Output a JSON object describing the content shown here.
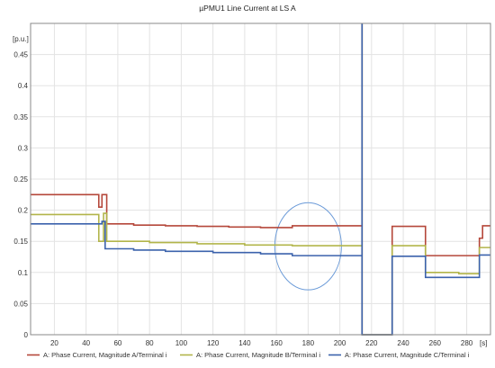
{
  "chart_data": {
    "type": "line",
    "title": "µPMU1 Line Current at LS A",
    "ylabel": "[p.u.]",
    "xlabel": "[s]",
    "xlim": [
      5,
      295
    ],
    "ylim": [
      0,
      0.5
    ],
    "x_ticks": [
      20,
      40,
      60,
      80,
      100,
      120,
      140,
      160,
      180,
      200,
      220,
      240,
      260,
      280
    ],
    "y_ticks": [
      0,
      0.05,
      0.1,
      0.15,
      0.2,
      0.25,
      0.3,
      0.35,
      0.4,
      0.45
    ],
    "y_tick_labels": [
      "0",
      "0.05",
      "0.1",
      "0.15",
      "0.2",
      "0.25",
      "0.3",
      "0.35",
      "0.4",
      "0.45"
    ],
    "grid": true,
    "legend_position": "bottom",
    "annotation": {
      "shape": "ellipse",
      "center_x": 180,
      "center_y": 0.142,
      "radius_x": 21,
      "radius_y": 0.07,
      "color": "#6a9ad8"
    },
    "series": [
      {
        "name": "A: Phase Current, Magnitude A/Terminal i",
        "color": "#b5473a",
        "points": [
          [
            5,
            0.225
          ],
          [
            48,
            0.225
          ],
          [
            48,
            0.205
          ],
          [
            50,
            0.205
          ],
          [
            50,
            0.225
          ],
          [
            53,
            0.225
          ],
          [
            53,
            0.178
          ],
          [
            70,
            0.178
          ],
          [
            70,
            0.176
          ],
          [
            90,
            0.176
          ],
          [
            90,
            0.175
          ],
          [
            110,
            0.175
          ],
          [
            110,
            0.174
          ],
          [
            130,
            0.174
          ],
          [
            130,
            0.173
          ],
          [
            150,
            0.173
          ],
          [
            150,
            0.172
          ],
          [
            170,
            0.172
          ],
          [
            170,
            0.175
          ],
          [
            214,
            0.175
          ],
          [
            214,
            0.5
          ],
          [
            214,
            0.0
          ],
          [
            215,
            0.0
          ],
          [
            233,
            0.0
          ],
          [
            233,
            0.174
          ],
          [
            254,
            0.174
          ],
          [
            254,
            0.127
          ],
          [
            288,
            0.127
          ],
          [
            288,
            0.155
          ],
          [
            290,
            0.155
          ],
          [
            290,
            0.175
          ],
          [
            295,
            0.175
          ]
        ]
      },
      {
        "name": "A: Phase Current, Magnitude B/Terminal i",
        "color": "#b2b54a",
        "points": [
          [
            5,
            0.193
          ],
          [
            48,
            0.193
          ],
          [
            48,
            0.15
          ],
          [
            51,
            0.15
          ],
          [
            51,
            0.195
          ],
          [
            53,
            0.195
          ],
          [
            53,
            0.15
          ],
          [
            80,
            0.15
          ],
          [
            80,
            0.148
          ],
          [
            110,
            0.148
          ],
          [
            110,
            0.146
          ],
          [
            140,
            0.146
          ],
          [
            140,
            0.144
          ],
          [
            170,
            0.144
          ],
          [
            170,
            0.143
          ],
          [
            214,
            0.143
          ],
          [
            214,
            0.5
          ],
          [
            214,
            0.0
          ],
          [
            215,
            0.0
          ],
          [
            233,
            0.0
          ],
          [
            233,
            0.143
          ],
          [
            254,
            0.143
          ],
          [
            254,
            0.1
          ],
          [
            275,
            0.1
          ],
          [
            275,
            0.098
          ],
          [
            288,
            0.098
          ],
          [
            288,
            0.14
          ],
          [
            295,
            0.14
          ]
        ]
      },
      {
        "name": "A: Phase Current, Magnitude C/Terminal i",
        "color": "#3b62ac",
        "points": [
          [
            5,
            0.178
          ],
          [
            50,
            0.178
          ],
          [
            50,
            0.182
          ],
          [
            52,
            0.182
          ],
          [
            52,
            0.138
          ],
          [
            70,
            0.138
          ],
          [
            70,
            0.136
          ],
          [
            90,
            0.136
          ],
          [
            90,
            0.134
          ],
          [
            120,
            0.134
          ],
          [
            120,
            0.132
          ],
          [
            150,
            0.132
          ],
          [
            150,
            0.13
          ],
          [
            170,
            0.13
          ],
          [
            170,
            0.127
          ],
          [
            214,
            0.127
          ],
          [
            214,
            0.5
          ],
          [
            214,
            0.0
          ],
          [
            215,
            0.0
          ],
          [
            233,
            0.0
          ],
          [
            233,
            0.126
          ],
          [
            254,
            0.126
          ],
          [
            254,
            0.092
          ],
          [
            288,
            0.092
          ],
          [
            288,
            0.128
          ],
          [
            295,
            0.128
          ]
        ]
      }
    ]
  }
}
